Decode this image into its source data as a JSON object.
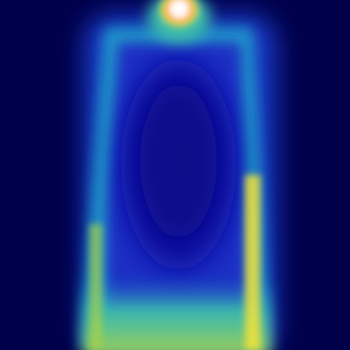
{
  "image": {
    "kind": "heatmap-photo",
    "colormap": "jet",
    "colors": {
      "background": "#00004a",
      "deep_blue": "#0a0f9e",
      "blue": "#1f3fd6",
      "cyan": "#22b3c9",
      "teal": "#3fc0a8",
      "green_yellow": "#a8d24a",
      "yellow": "#f2e23a",
      "orange": "#ff9b2a",
      "hot": "#ffffff"
    }
  }
}
